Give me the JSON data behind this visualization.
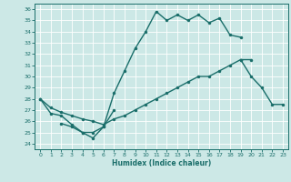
{
  "xlabel": "Humidex (Indice chaleur)",
  "bg_color": "#cce8e6",
  "grid_color": "#b8d8d5",
  "line_color": "#1a6e6a",
  "xlim": [
    -0.5,
    23.5
  ],
  "ylim": [
    23.5,
    36.5
  ],
  "xticks": [
    0,
    1,
    2,
    3,
    4,
    5,
    6,
    7,
    8,
    9,
    10,
    11,
    12,
    13,
    14,
    15,
    16,
    17,
    18,
    19,
    20,
    21,
    22,
    23
  ],
  "yticks": [
    24,
    25,
    26,
    27,
    28,
    29,
    30,
    31,
    32,
    33,
    34,
    35,
    36
  ],
  "line1_x": [
    0,
    1,
    2,
    3,
    4,
    5,
    6,
    7,
    8,
    9,
    10,
    11,
    12,
    13,
    14,
    15,
    16,
    17,
    18,
    19
  ],
  "line1_y": [
    28,
    26.7,
    26.5,
    25.7,
    25.0,
    24.5,
    25.5,
    28.5,
    30.5,
    32.5,
    34.0,
    35.8,
    35.0,
    35.5,
    35.0,
    35.5,
    34.8,
    35.2,
    33.7,
    33.5
  ],
  "line2_x": [
    2,
    3,
    4,
    5,
    6,
    7
  ],
  "line2_y": [
    25.8,
    25.5,
    25.0,
    25.0,
    25.5,
    27.0
  ],
  "line3_x": [
    0,
    1,
    2,
    3,
    4,
    5,
    6,
    7,
    8,
    9,
    10,
    11,
    12,
    13,
    14,
    15,
    16,
    17,
    18,
    19,
    20
  ],
  "line3_y": [
    28,
    27.2,
    26.8,
    26.5,
    26.2,
    26.0,
    25.7,
    26.2,
    26.5,
    27.0,
    27.5,
    28.0,
    28.5,
    29.0,
    29.5,
    30.0,
    30.0,
    30.5,
    31.0,
    31.5,
    31.5
  ],
  "line4_x": [
    19,
    20,
    21,
    22,
    23
  ],
  "line4_y": [
    31.5,
    30.0,
    29.0,
    27.5,
    27.5
  ]
}
